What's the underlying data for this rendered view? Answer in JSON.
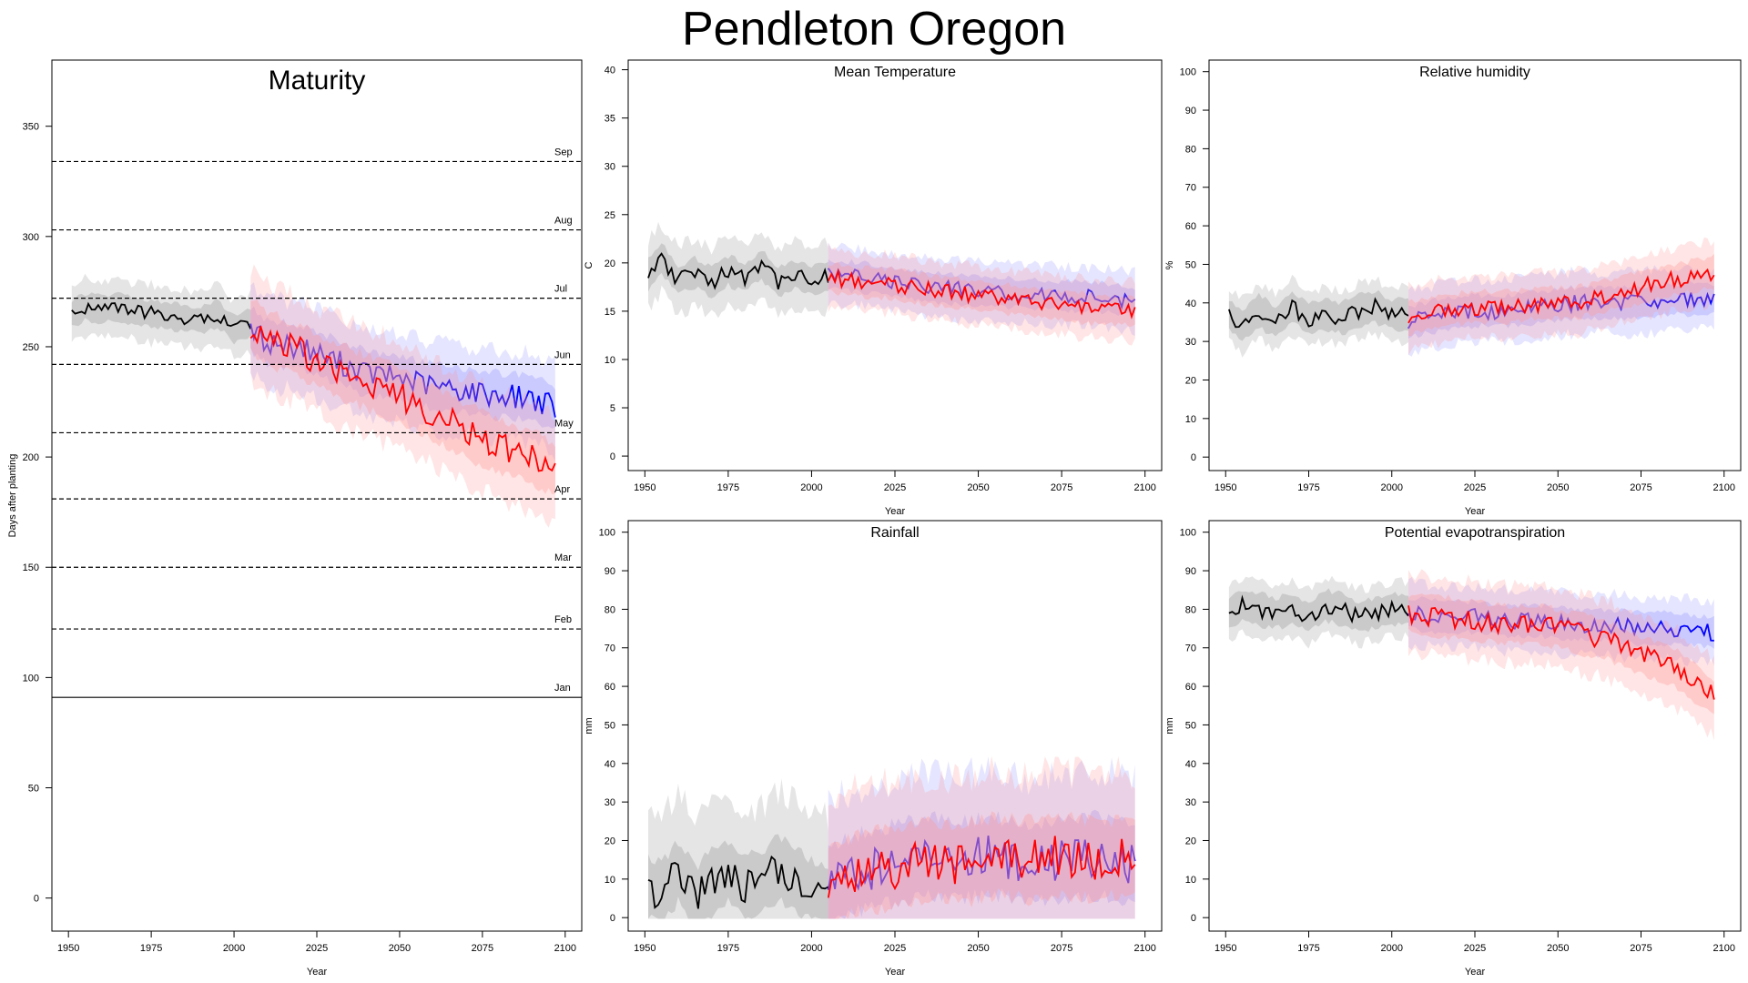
{
  "page": {
    "title": "Pendleton Oregon"
  },
  "colors": {
    "historical": "#000000",
    "scenario_blue": "#0000ff",
    "scenario_red": "#ff0000",
    "band_grey": "#999999",
    "band_blue": "#9999ff",
    "band_red": "#ff9999"
  },
  "chart_data": [
    {
      "id": "maturity",
      "type": "line",
      "title": "Maturity",
      "xlabel": "Year",
      "ylabel": "Days after planting",
      "xlim": [
        1945,
        2105
      ],
      "ylim": [
        -15,
        380
      ],
      "xticks": [
        1950,
        1975,
        2000,
        2025,
        2050,
        2075,
        2100
      ],
      "yticks": [
        0,
        50,
        100,
        150,
        200,
        250,
        300,
        350
      ],
      "reference_lines": [
        {
          "label": "Jan",
          "value": 91,
          "style": "solid"
        },
        {
          "label": "Feb",
          "value": 122,
          "style": "dashed"
        },
        {
          "label": "Mar",
          "value": 150,
          "style": "dashed"
        },
        {
          "label": "Apr",
          "value": 181,
          "style": "dashed"
        },
        {
          "label": "May",
          "value": 211,
          "style": "dashed"
        },
        {
          "label": "Jun",
          "value": 242,
          "style": "dashed"
        },
        {
          "label": "Jul",
          "value": 272,
          "style": "dashed"
        },
        {
          "label": "Aug",
          "value": 303,
          "style": "dashed"
        },
        {
          "label": "Sep",
          "value": 334,
          "style": "dashed"
        }
      ],
      "series": [
        {
          "role": "historical",
          "x": [
            1951,
            1955,
            1960,
            1965,
            1970,
            1975,
            1980,
            1985,
            1990,
            1995,
            2000,
            2005
          ],
          "y": [
            265,
            268,
            267,
            268,
            266,
            265,
            264,
            263,
            262,
            265,
            258,
            261
          ],
          "band_inner": 6,
          "band_outer": 13
        },
        {
          "role": "scenario_blue",
          "x": [
            2005,
            2010,
            2020,
            2030,
            2040,
            2050,
            2060,
            2070,
            2080,
            2090,
            2097
          ],
          "y": [
            258,
            252,
            250,
            244,
            238,
            236,
            232,
            230,
            228,
            227,
            222
          ],
          "band_inner": 10,
          "band_outer": 20
        },
        {
          "role": "scenario_red",
          "x": [
            2005,
            2010,
            2020,
            2030,
            2040,
            2050,
            2060,
            2070,
            2080,
            2090,
            2097
          ],
          "y": [
            260,
            254,
            248,
            240,
            234,
            228,
            220,
            212,
            205,
            200,
            194
          ],
          "band_inner": 12,
          "band_outer": 24
        }
      ]
    },
    {
      "id": "mean-temperature",
      "type": "line",
      "title": "Mean Temperature",
      "xlabel": "Year",
      "ylabel": "C",
      "xlim": [
        1945,
        2105
      ],
      "ylim": [
        -1.5,
        41
      ],
      "xticks": [
        1950,
        1975,
        2000,
        2025,
        2050,
        2075,
        2100
      ],
      "yticks": [
        0,
        5,
        10,
        15,
        20,
        25,
        30,
        35,
        40
      ],
      "series": [
        {
          "role": "historical",
          "x": [
            1951,
            1955,
            1960,
            1965,
            1970,
            1975,
            1980,
            1985,
            1990,
            1995,
            2000,
            2005
          ],
          "y": [
            18.8,
            20.5,
            18.2,
            19.0,
            18.0,
            19.2,
            18.5,
            19.8,
            18.0,
            18.8,
            18.2,
            18.6
          ],
          "band_inner": 1.5,
          "band_outer": 3.5
        },
        {
          "role": "scenario_blue",
          "x": [
            2005,
            2015,
            2025,
            2035,
            2045,
            2055,
            2065,
            2075,
            2085,
            2097
          ],
          "y": [
            18.8,
            18.5,
            18.0,
            17.5,
            17.2,
            17.0,
            16.8,
            16.6,
            16.5,
            16.0
          ],
          "band_inner": 1.5,
          "band_outer": 3.0
        },
        {
          "role": "scenario_red",
          "x": [
            2005,
            2015,
            2025,
            2035,
            2045,
            2055,
            2065,
            2075,
            2085,
            2097
          ],
          "y": [
            18.5,
            18.0,
            17.8,
            17.2,
            16.8,
            16.4,
            16.0,
            15.6,
            15.2,
            15.0
          ],
          "band_inner": 1.5,
          "band_outer": 3.0
        }
      ]
    },
    {
      "id": "relative-humidity",
      "type": "line",
      "title": "Relative humidity",
      "xlabel": "Year",
      "ylabel": "%",
      "xlim": [
        1945,
        2105
      ],
      "ylim": [
        -3.5,
        103
      ],
      "xticks": [
        1950,
        1975,
        2000,
        2025,
        2050,
        2075,
        2100
      ],
      "yticks": [
        0,
        10,
        20,
        30,
        40,
        50,
        60,
        70,
        80,
        90,
        100
      ],
      "series": [
        {
          "role": "historical",
          "x": [
            1951,
            1955,
            1960,
            1965,
            1970,
            1975,
            1980,
            1985,
            1990,
            1995,
            2000,
            2005
          ],
          "y": [
            37,
            34,
            38,
            35,
            39,
            36,
            37,
            36,
            38,
            39,
            37,
            37
          ],
          "band_inner": 4,
          "band_outer": 7
        },
        {
          "role": "scenario_blue",
          "x": [
            2005,
            2015,
            2025,
            2035,
            2045,
            2055,
            2065,
            2075,
            2085,
            2097
          ],
          "y": [
            35,
            37,
            38,
            38,
            39,
            40,
            40,
            40,
            41,
            41
          ],
          "band_inner": 4,
          "band_outer": 8
        },
        {
          "role": "scenario_red",
          "x": [
            2005,
            2015,
            2025,
            2035,
            2045,
            2055,
            2065,
            2075,
            2085,
            2097
          ],
          "y": [
            36,
            38,
            39,
            39,
            40,
            40,
            42,
            44,
            46,
            48
          ],
          "band_inner": 4,
          "band_outer": 8
        }
      ]
    },
    {
      "id": "rainfall",
      "type": "line",
      "title": "Rainfall",
      "xlabel": "Year",
      "ylabel": "mm",
      "xlim": [
        1945,
        2105
      ],
      "ylim": [
        -3.5,
        103
      ],
      "xticks": [
        1950,
        1975,
        2000,
        2025,
        2050,
        2075,
        2100
      ],
      "yticks": [
        0,
        10,
        20,
        30,
        40,
        50,
        60,
        70,
        80,
        90,
        100
      ],
      "series": [
        {
          "role": "historical",
          "x": [
            1951,
            1955,
            1960,
            1965,
            1970,
            1975,
            1980,
            1985,
            1990,
            1995,
            2000,
            2005
          ],
          "y": [
            8,
            6,
            12,
            5,
            9,
            12,
            8,
            9,
            13,
            10,
            7,
            6
          ],
          "band_inner": 8,
          "band_outer": 20
        },
        {
          "role": "scenario_blue",
          "x": [
            2005,
            2015,
            2025,
            2035,
            2045,
            2055,
            2065,
            2075,
            2085,
            2097
          ],
          "y": [
            8,
            12,
            14,
            16,
            15,
            16,
            14,
            15,
            16,
            14
          ],
          "band_inner": 10,
          "band_outer": 22
        },
        {
          "role": "scenario_red",
          "x": [
            2005,
            2015,
            2025,
            2035,
            2045,
            2055,
            2065,
            2075,
            2085,
            2097
          ],
          "y": [
            8,
            12,
            13,
            15,
            14,
            16,
            15,
            16,
            15,
            16
          ],
          "band_inner": 10,
          "band_outer": 22
        }
      ]
    },
    {
      "id": "potential-evapotranspiration",
      "type": "line",
      "title": "Potential evapotranspiration",
      "xlabel": "Year",
      "ylabel": "mm",
      "xlim": [
        1945,
        2105
      ],
      "ylim": [
        -3.5,
        103
      ],
      "xticks": [
        1950,
        1975,
        2000,
        2025,
        2050,
        2075,
        2100
      ],
      "yticks": [
        0,
        10,
        20,
        30,
        40,
        50,
        60,
        70,
        80,
        90,
        100
      ],
      "series": [
        {
          "role": "historical",
          "x": [
            1951,
            1955,
            1960,
            1965,
            1970,
            1975,
            1980,
            1985,
            1990,
            1995,
            2000,
            2005
          ],
          "y": [
            79,
            81,
            80,
            79,
            80,
            78,
            81,
            80,
            78,
            79,
            80,
            80
          ],
          "band_inner": 4,
          "band_outer": 7
        },
        {
          "role": "scenario_blue",
          "x": [
            2005,
            2015,
            2025,
            2035,
            2045,
            2055,
            2065,
            2075,
            2085,
            2097
          ],
          "y": [
            79,
            78,
            78,
            77,
            77,
            76,
            76,
            75,
            75,
            74
          ],
          "band_inner": 4,
          "band_outer": 8
        },
        {
          "role": "scenario_red",
          "x": [
            2005,
            2015,
            2025,
            2035,
            2045,
            2055,
            2065,
            2075,
            2085,
            2097
          ],
          "y": [
            79,
            78,
            77,
            76,
            76,
            74,
            72,
            68,
            65,
            57
          ],
          "band_inner": 5,
          "band_outer": 10
        }
      ]
    }
  ]
}
